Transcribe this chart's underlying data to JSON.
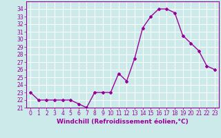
{
  "x": [
    0,
    1,
    2,
    3,
    4,
    5,
    6,
    7,
    8,
    9,
    10,
    11,
    12,
    13,
    14,
    15,
    16,
    17,
    18,
    19,
    20,
    21,
    22,
    23
  ],
  "y": [
    23,
    22,
    22,
    22,
    22,
    22,
    21.5,
    21,
    23,
    23,
    23,
    25.5,
    24.5,
    27.5,
    31.5,
    33,
    34,
    34,
    33.5,
    30.5,
    29.5,
    28.5,
    26.5,
    26
  ],
  "line_color": "#990099",
  "marker": "D",
  "marker_size": 2,
  "line_width": 1.0,
  "xlabel": "Windchill (Refroidissement éolien,°C)",
  "xlabel_fontsize": 6.5,
  "background_color": "#cceaea",
  "grid_color": "#ffffff",
  "ylim": [
    21,
    35
  ],
  "xlim": [
    -0.5,
    23.5
  ],
  "yticks": [
    21,
    22,
    23,
    24,
    25,
    26,
    27,
    28,
    29,
    30,
    31,
    32,
    33,
    34
  ],
  "xticks": [
    0,
    1,
    2,
    3,
    4,
    5,
    6,
    7,
    8,
    9,
    10,
    11,
    12,
    13,
    14,
    15,
    16,
    17,
    18,
    19,
    20,
    21,
    22,
    23
  ],
  "tick_fontsize": 5.5,
  "tick_color": "#990099",
  "spine_color": "#990099"
}
